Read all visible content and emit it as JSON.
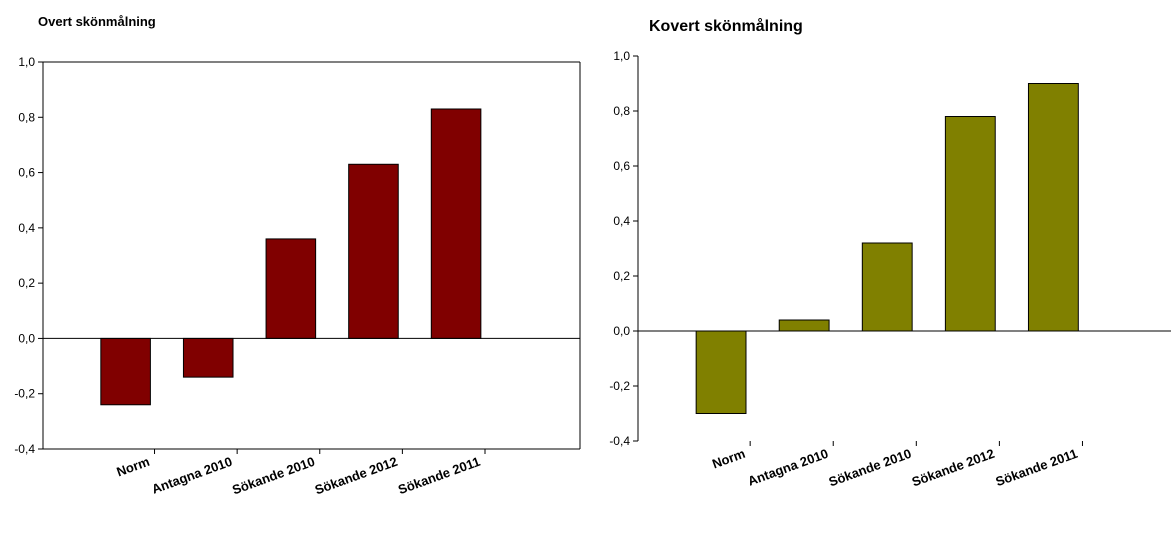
{
  "chart_data": [
    {
      "type": "bar",
      "title": "Overt skönmålning",
      "categories": [
        "Norm",
        "Antagna 2010",
        "Sökande 2010",
        "Sökande 2012",
        "Sökande 2011"
      ],
      "values": [
        -0.24,
        -0.14,
        0.36,
        0.63,
        0.83
      ],
      "ylim": [
        -0.4,
        1.0
      ],
      "yticks": [
        "1,0",
        "0,8",
        "0,6",
        "0,4",
        "0,2",
        "0,0",
        "-0,2",
        "-0,4"
      ],
      "color": "#800000",
      "grid": false,
      "legend": "none"
    },
    {
      "type": "bar",
      "title": "Kovert skönmålning",
      "categories": [
        "Norm",
        "Antagna 2010",
        "Sökande 2010",
        "Sökande 2012",
        "Sökande 2011"
      ],
      "values": [
        -0.3,
        0.04,
        0.32,
        0.78,
        0.9
      ],
      "ylim": [
        -0.4,
        1.0
      ],
      "yticks": [
        "1,0",
        "0,8",
        "0,6",
        "0,4",
        "0,2",
        "0,0",
        "-0,2",
        "-0,4"
      ],
      "color": "#808000",
      "grid": false,
      "legend": "none"
    }
  ]
}
